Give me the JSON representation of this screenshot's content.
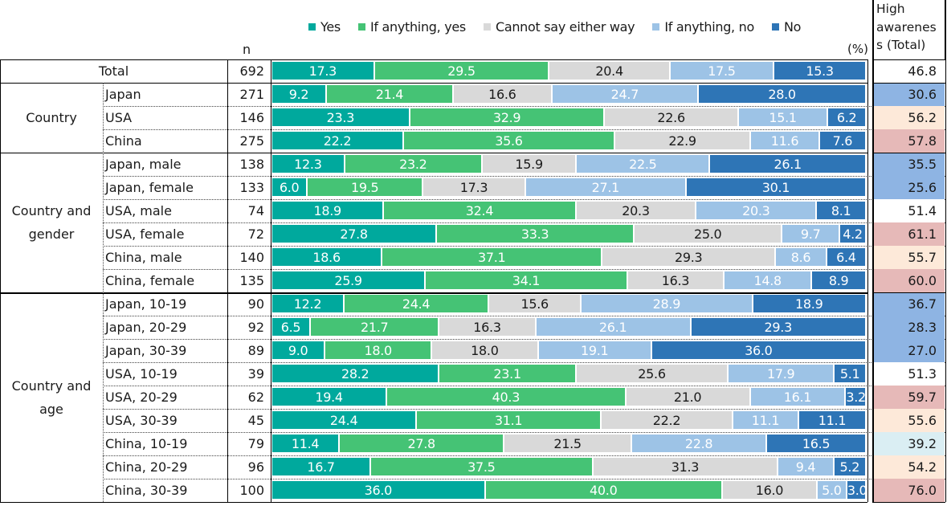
{
  "chart_data": {
    "type": "bar",
    "orientation": "horizontal",
    "stacked": true,
    "unit_label": "(%)",
    "n_header": "n",
    "high_awareness_header": "High awareness (Total)",
    "high_awareness_header_display": [
      "High",
      "awarenes",
      "s (Total)"
    ],
    "legend_placement": "top",
    "series": [
      {
        "name": "Yes",
        "color": "#00A99D",
        "text_color": "#ffffff"
      },
      {
        "name": "If anything, yes",
        "color": "#45C375",
        "text_color": "#ffffff"
      },
      {
        "name": "Cannot say either way",
        "color": "#D9D9D9",
        "text_color": "#1a1a1a"
      },
      {
        "name": "If anything, no",
        "color": "#9DC3E6",
        "text_color": "#ffffff"
      },
      {
        "name": "No",
        "color": "#2E75B6",
        "text_color": "#ffffff"
      }
    ],
    "groups": [
      {
        "label": "Total",
        "label_lines": [
          "Total"
        ],
        "rows": [
          0
        ]
      },
      {
        "label": "Country",
        "label_lines": [
          "Country"
        ],
        "rows": [
          1,
          2,
          3
        ]
      },
      {
        "label": "Country and gender",
        "label_lines": [
          "Country and",
          "gender"
        ],
        "rows": [
          4,
          5,
          6,
          7,
          8,
          9
        ]
      },
      {
        "label": "Country and age",
        "label_lines": [
          "Country and",
          "age"
        ],
        "rows": [
          10,
          11,
          12,
          13,
          14,
          15,
          16,
          17,
          18
        ]
      }
    ],
    "rows": [
      {
        "label": "Total",
        "n": 692,
        "values": [
          17.3,
          29.5,
          20.4,
          17.5,
          15.3
        ],
        "high_awareness": 46.8,
        "ha_color": "#FFFFFF"
      },
      {
        "label": "Japan",
        "n": 271,
        "values": [
          9.2,
          21.4,
          16.6,
          24.7,
          28.0
        ],
        "high_awareness": 30.6,
        "ha_color": "#8EB4E3"
      },
      {
        "label": "USA",
        "n": 146,
        "values": [
          23.3,
          32.9,
          22.6,
          15.1,
          6.2
        ],
        "high_awareness": 56.2,
        "ha_color": "#FDE9D9"
      },
      {
        "label": "China",
        "n": 275,
        "values": [
          22.2,
          35.6,
          22.9,
          11.6,
          7.6
        ],
        "high_awareness": 57.8,
        "ha_color": "#E6B9B8"
      },
      {
        "label": "Japan, male",
        "n": 138,
        "values": [
          12.3,
          23.2,
          15.9,
          22.5,
          26.1
        ],
        "high_awareness": 35.5,
        "ha_color": "#8EB4E3"
      },
      {
        "label": "Japan, female",
        "n": 133,
        "values": [
          6.0,
          19.5,
          17.3,
          27.1,
          30.1
        ],
        "high_awareness": 25.6,
        "ha_color": "#8EB4E3"
      },
      {
        "label": "USA, male",
        "n": 74,
        "values": [
          18.9,
          32.4,
          20.3,
          20.3,
          8.1
        ],
        "high_awareness": 51.4,
        "ha_color": "#FFFFFF"
      },
      {
        "label": "USA, female",
        "n": 72,
        "values": [
          27.8,
          33.3,
          25.0,
          9.7,
          4.2
        ],
        "high_awareness": 61.1,
        "ha_color": "#E6B9B8"
      },
      {
        "label": "China, male",
        "n": 140,
        "values": [
          18.6,
          37.1,
          29.3,
          8.6,
          6.4
        ],
        "high_awareness": 55.7,
        "ha_color": "#FDE9D9"
      },
      {
        "label": "China, female",
        "n": 135,
        "values": [
          25.9,
          34.1,
          16.3,
          14.8,
          8.9
        ],
        "high_awareness": 60.0,
        "ha_color": "#E6B9B8"
      },
      {
        "label": "Japan, 10-19",
        "n": 90,
        "values": [
          12.2,
          24.4,
          15.6,
          28.9,
          18.9
        ],
        "high_awareness": 36.7,
        "ha_color": "#8EB4E3"
      },
      {
        "label": "Japan, 20-29",
        "n": 92,
        "values": [
          6.5,
          21.7,
          16.3,
          26.1,
          29.3
        ],
        "high_awareness": 28.3,
        "ha_color": "#8EB4E3"
      },
      {
        "label": "Japan, 30-39",
        "n": 89,
        "values": [
          9.0,
          18.0,
          18.0,
          19.1,
          36.0
        ],
        "high_awareness": 27.0,
        "ha_color": "#8EB4E3"
      },
      {
        "label": "USA, 10-19",
        "n": 39,
        "values": [
          28.2,
          23.1,
          25.6,
          17.9,
          5.1
        ],
        "high_awareness": 51.3,
        "ha_color": "#FFFFFF"
      },
      {
        "label": "USA, 20-29",
        "n": 62,
        "values": [
          19.4,
          40.3,
          21.0,
          16.1,
          3.2
        ],
        "high_awareness": 59.7,
        "ha_color": "#E6B9B8"
      },
      {
        "label": "USA, 30-39",
        "n": 45,
        "values": [
          24.4,
          31.1,
          22.2,
          11.1,
          11.1
        ],
        "high_awareness": 55.6,
        "ha_color": "#FDE9D9"
      },
      {
        "label": "China, 10-19",
        "n": 79,
        "values": [
          11.4,
          27.8,
          21.5,
          22.8,
          16.5
        ],
        "high_awareness": 39.2,
        "ha_color": "#DAEEF3"
      },
      {
        "label": "China, 20-29",
        "n": 96,
        "values": [
          16.7,
          37.5,
          31.3,
          9.4,
          5.2
        ],
        "high_awareness": 54.2,
        "ha_color": "#FDE9D9"
      },
      {
        "label": "China, 30-39",
        "n": 100,
        "values": [
          36.0,
          40.0,
          16.0,
          5.0,
          3.0
        ],
        "high_awareness": 76.0,
        "ha_color": "#E6B9B8"
      }
    ]
  }
}
